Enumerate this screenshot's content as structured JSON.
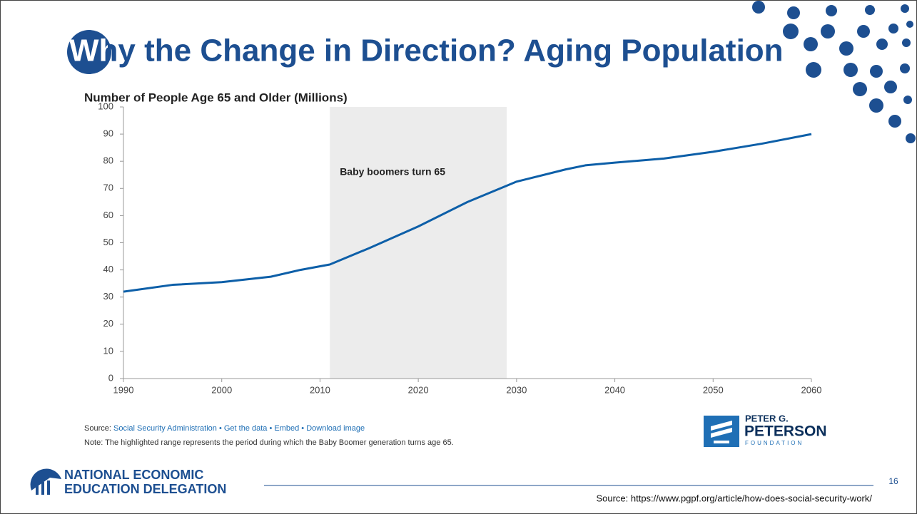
{
  "header": {
    "title": "Why the Change in Direction? Aging Population"
  },
  "chart_data": {
    "type": "line",
    "title": "Number of People Age 65 and Older (Millions)",
    "x": [
      1990,
      1995,
      2000,
      2005,
      2008,
      2011,
      2015,
      2020,
      2025,
      2029,
      2030,
      2035,
      2037,
      2040,
      2045,
      2050,
      2055,
      2060
    ],
    "values": [
      32,
      34.5,
      35.5,
      37.5,
      40,
      42,
      48,
      56,
      65,
      71,
      72.5,
      77,
      78.5,
      79.5,
      81,
      83.5,
      86.5,
      90
    ],
    "color": "#0d5fa8",
    "highlight_range": [
      2011,
      2029
    ],
    "annotation": "Baby boomers turn 65",
    "xlim": [
      1990,
      2060
    ],
    "xticks": [
      1990,
      2000,
      2010,
      2020,
      2030,
      2040,
      2050,
      2060
    ],
    "ylim": [
      0,
      100
    ],
    "yticks": [
      0,
      10,
      20,
      30,
      40,
      50,
      60,
      70,
      80,
      90,
      100
    ]
  },
  "chart_source": {
    "prefix": "Source:",
    "links": [
      "Social Security Administration",
      "Get the data",
      "Embed",
      "Download image"
    ],
    "note": "Note: The highlighted range represents the period during which the Baby Boomer generation turns age 65."
  },
  "peterson_logo": [
    "PETER G.",
    "PETERSON",
    "FOUNDATION"
  ],
  "footer": {
    "logo_lines": [
      "NATIONAL ECONOMIC",
      "EDUCATION DELEGATION"
    ],
    "page_number": "16",
    "source": "Source: https://www.pgpf.org/article/how-does-social-security-work/"
  }
}
